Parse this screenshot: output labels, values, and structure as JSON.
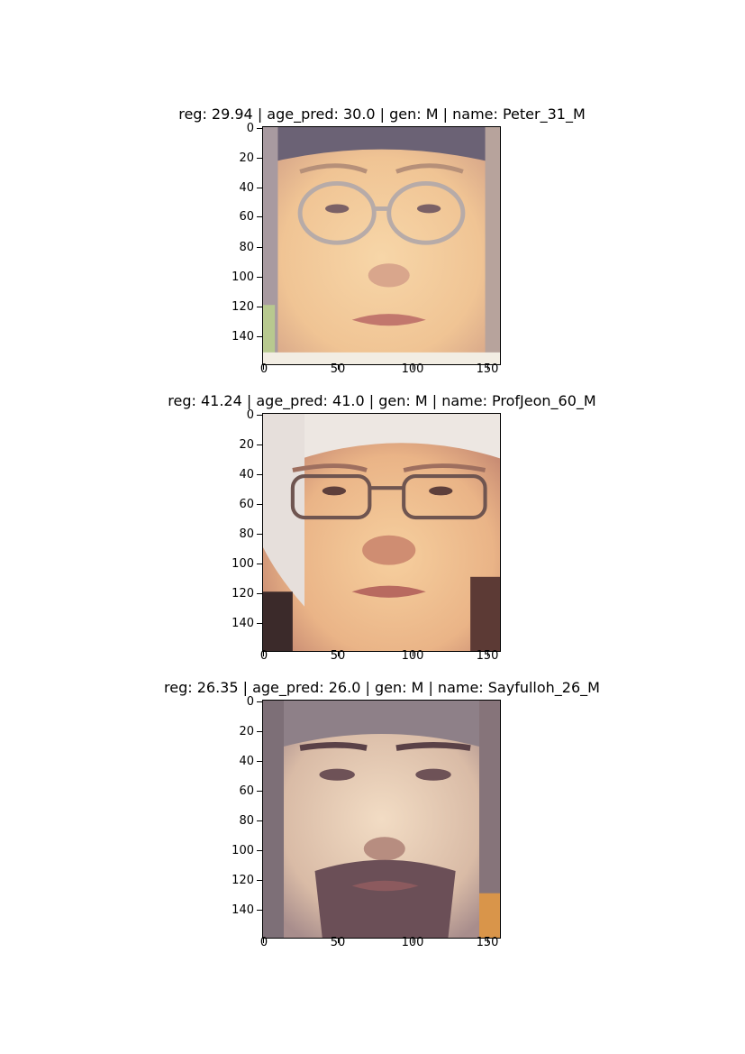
{
  "panels": [
    {
      "title": "reg: 29.94 | age_pred: 30.0 | gen: M | name: Peter_31_M",
      "image_icon": "face-photo-young-man-glasses",
      "y_ticks": [
        "0",
        "20",
        "40",
        "60",
        "80",
        "100",
        "120",
        "140"
      ],
      "x_ticks": [
        "0",
        "50",
        "100",
        "150"
      ]
    },
    {
      "title": "reg: 41.24 | age_pred: 41.0 | gen: M | name: ProfJeon_60_M",
      "image_icon": "face-photo-older-man-glasses",
      "y_ticks": [
        "0",
        "20",
        "40",
        "60",
        "80",
        "100",
        "120",
        "140"
      ],
      "x_ticks": [
        "0",
        "50",
        "100",
        "150"
      ]
    },
    {
      "title": "reg: 26.35 | age_pred: 26.0 | gen: M | name: Sayfulloh_26_M",
      "image_icon": "face-photo-man-beard",
      "y_ticks": [
        "0",
        "20",
        "40",
        "60",
        "80",
        "100",
        "120",
        "140"
      ],
      "x_ticks": [
        "0",
        "50",
        "100",
        "150"
      ]
    }
  ]
}
